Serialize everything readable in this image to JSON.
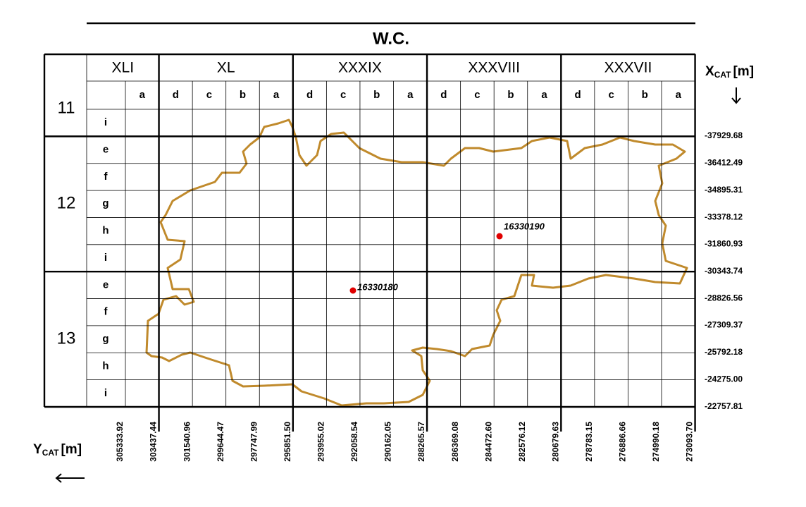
{
  "title": "W.C.",
  "column_groups": [
    {
      "label": "XLI",
      "columns": [
        "a"
      ]
    },
    {
      "label": "XL",
      "columns": [
        "d",
        "c",
        "b",
        "a"
      ]
    },
    {
      "label": "XXXIX",
      "columns": [
        "d",
        "c",
        "b",
        "a"
      ]
    },
    {
      "label": "XXXVIII",
      "columns": [
        "d",
        "c",
        "b",
        "a"
      ]
    },
    {
      "label": "XXXVII",
      "columns": [
        "d",
        "c",
        "b",
        "a"
      ]
    }
  ],
  "row_groups": [
    {
      "label": "11",
      "rows": [
        "i"
      ]
    },
    {
      "label": "12",
      "rows": [
        "e",
        "f",
        "g",
        "h",
        "i"
      ]
    },
    {
      "label": "13",
      "rows": [
        "e",
        "f",
        "g",
        "h",
        "i"
      ]
    }
  ],
  "x_axis": {
    "symbol": "X",
    "subscript": "CAT",
    "unit": "[m]",
    "ticks": [
      "-37929.68",
      "-36412.49",
      "-34895.31",
      "-33378.12",
      "-31860.93",
      "-30343.74",
      "-28826.56",
      "-27309.37",
      "-25792.18",
      "-24275.00",
      "-22757.81"
    ]
  },
  "y_axis": {
    "symbol": "Y",
    "subscript": "CAT",
    "unit": "[m]",
    "ticks": [
      "305333.92",
      "303437.44",
      "301540.96",
      "299644.47",
      "297747.99",
      "295851.50",
      "293955.02",
      "292058.54",
      "290162.05",
      "288265.57",
      "286369.08",
      "284472.60",
      "282576.12",
      "280679.63",
      "278783.15",
      "276886.66",
      "274990.18",
      "273093.70"
    ]
  },
  "points": [
    {
      "label": "16330190"
    },
    {
      "label": "16330180"
    }
  ]
}
